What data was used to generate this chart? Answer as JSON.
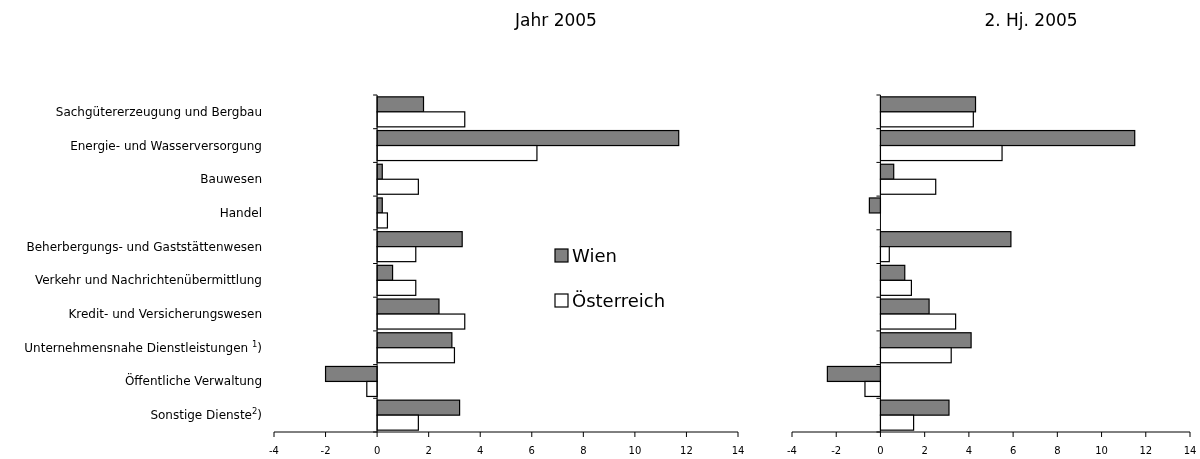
{
  "chart_data": [
    {
      "type": "bar",
      "orientation": "horizontal",
      "title": "Jahr 2005",
      "categories": [
        "Sachgütererzeugung und Bergbau",
        "Energie- und Wasserversorgung",
        "Bauwesen",
        "Handel",
        "Beherbergungs- und Gaststättenwesen",
        "Verkehr und Nachrichtenübermittlung",
        "Kredit- und Versicherungswesen",
        "Unternehmensnahe Dienstleistungen $^{1}$)",
        "Öffentliche Verwaltung",
        "Sonstige Dienste$^{2}$)"
      ],
      "series": [
        {
          "name": "Wien",
          "color": "#808080",
          "values": [
            1.8,
            11.7,
            0.2,
            0.2,
            3.3,
            0.6,
            2.4,
            2.9,
            -2.0,
            3.2
          ]
        },
        {
          "name": "Österreich",
          "color": "#ffffff",
          "values": [
            3.4,
            6.2,
            1.6,
            0.4,
            1.5,
            1.5,
            3.4,
            3.0,
            -0.4,
            1.6
          ]
        }
      ],
      "xlim": [
        -4,
        14
      ],
      "xticks": [
        -4,
        -2,
        0,
        2,
        4,
        6,
        8,
        10,
        12,
        14
      ],
      "legend": "right"
    },
    {
      "type": "bar",
      "orientation": "horizontal",
      "title": "2. Hj. 2005",
      "categories": [
        null,
        null,
        null,
        null,
        null,
        null,
        null,
        null,
        null,
        null
      ],
      "series": [
        {
          "color": "#808080",
          "values": [
            4.3,
            11.5,
            0.6,
            -0.5,
            5.9,
            1.1,
            2.2,
            4.1,
            -2.4,
            3.1
          ]
        },
        {
          "color": "#ffffff",
          "values": [
            4.2,
            5.5,
            2.5,
            0,
            0.4,
            1.4,
            3.4,
            3.2,
            -0.7,
            1.5
          ]
        }
      ],
      "xlim": [
        -4,
        14
      ],
      "xticks": [
        -4,
        -2,
        0,
        2,
        4,
        6,
        8,
        10,
        12,
        14
      ],
      "legend": false
    }
  ]
}
